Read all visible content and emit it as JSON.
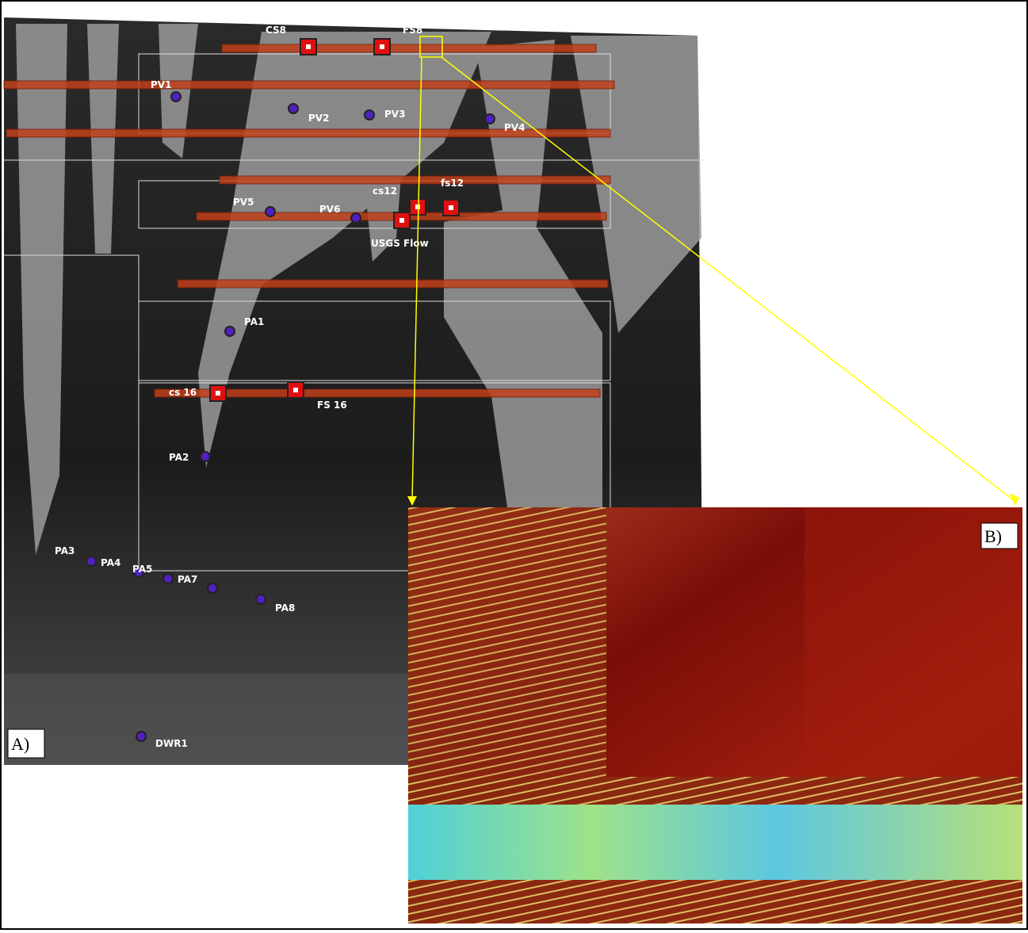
{
  "panel_a": {
    "label": "A)",
    "stations": [
      "PV1",
      "PV2",
      "PV3",
      "PV4",
      "PV5",
      "PV6",
      "PA1",
      "PA2",
      "PA3",
      "PA4",
      "PA5",
      "PA7",
      "PA8",
      "DWR1"
    ],
    "sample_sites": [
      "CS8",
      "FS8",
      "cs12",
      "fs12",
      "USGS Flow",
      "cs 16",
      "FS 16"
    ]
  },
  "panel_b": {
    "label": "B)"
  }
}
